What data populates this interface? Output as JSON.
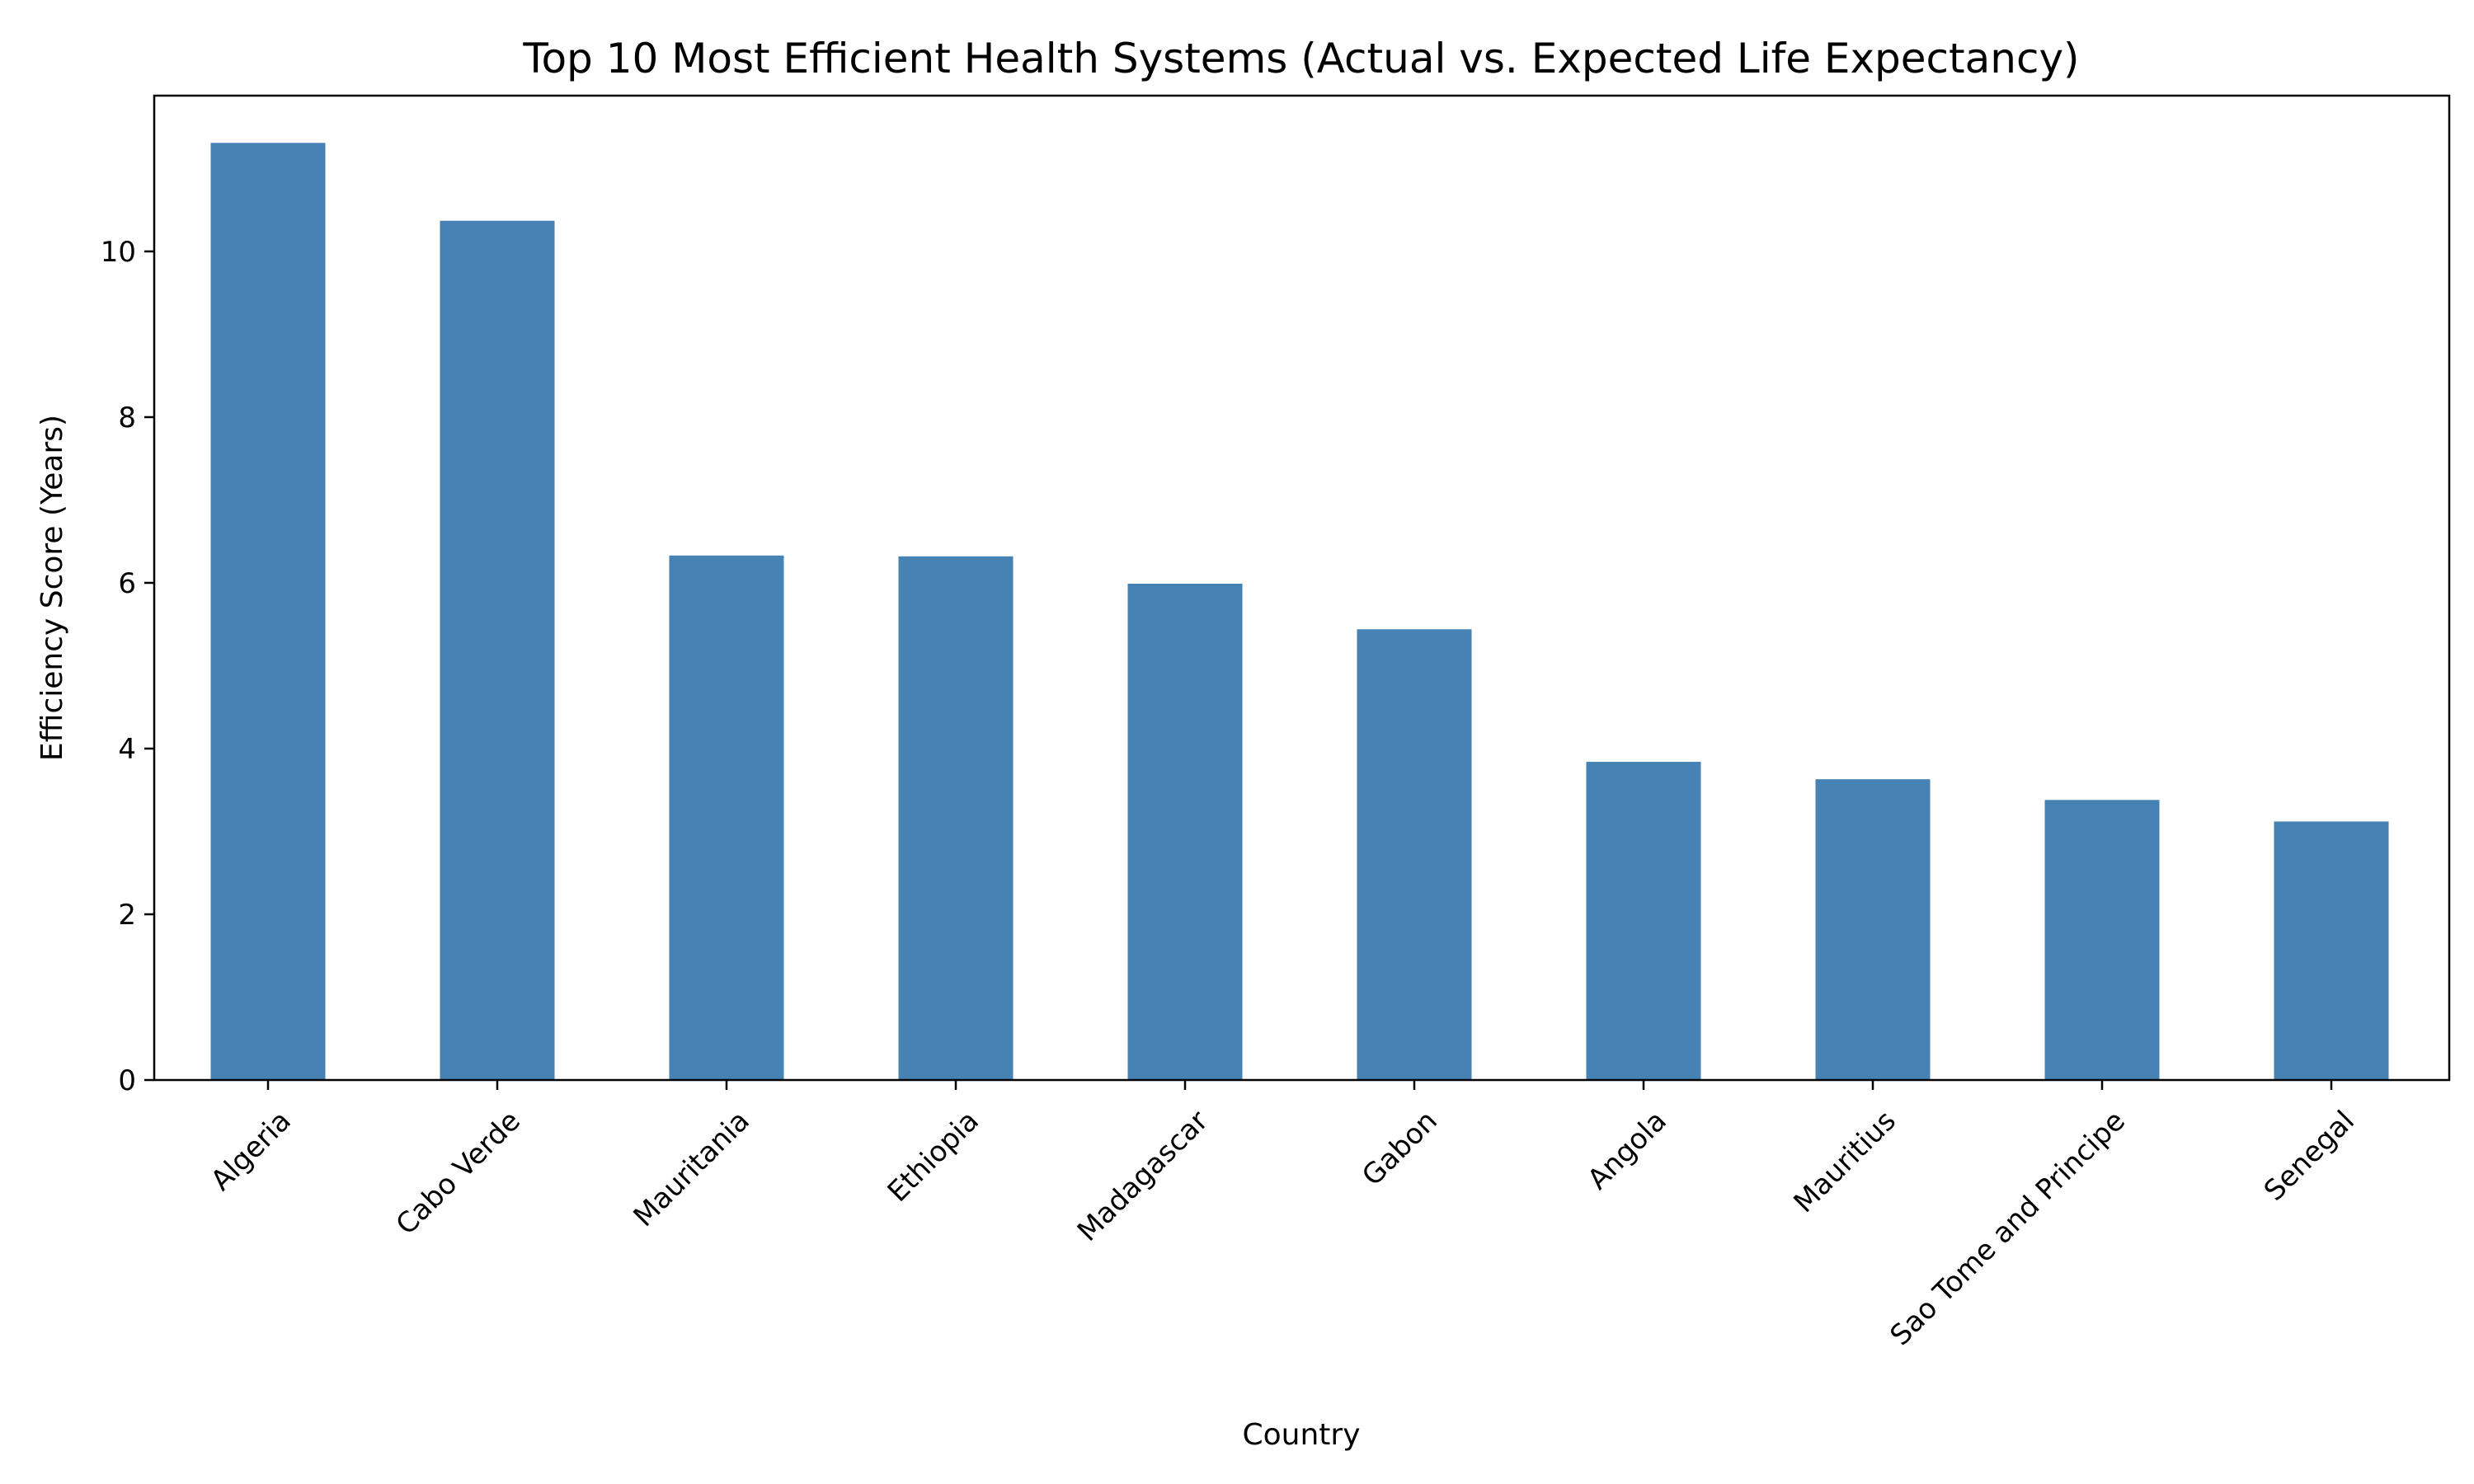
{
  "chart_data": {
    "type": "bar",
    "title": "Top 10 Most Efficient Health Systems (Actual vs. Expected Life Expectancy)",
    "xlabel": "Country",
    "ylabel": "Efficiency Score (Years)",
    "categories": [
      "Algeria",
      "Cabo Verde",
      "Mauritania",
      "Ethiopia",
      "Madagascar",
      "Gabon",
      "Angola",
      "Mauritius",
      "Sao Tome and Principe",
      "Senegal"
    ],
    "values": [
      11.31,
      10.37,
      6.33,
      6.32,
      5.99,
      5.44,
      3.84,
      3.63,
      3.38,
      3.12
    ],
    "ylim": [
      0,
      11.88
    ],
    "yticks": [
      0,
      2,
      4,
      6,
      8,
      10
    ],
    "bar_color": "#4682b4",
    "grid": false,
    "legend": false
  }
}
